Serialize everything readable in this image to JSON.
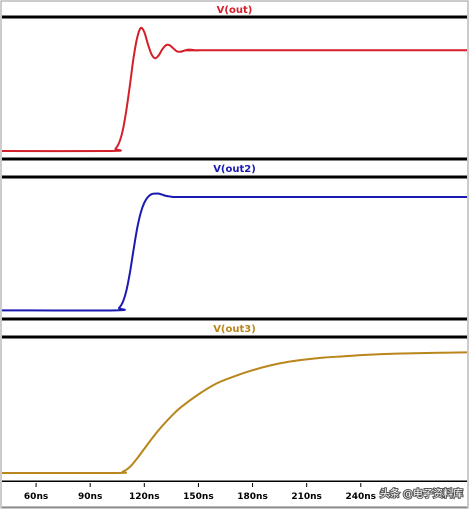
{
  "chart_data": [
    {
      "type": "line",
      "title": "V(out)",
      "color": "#d31f2a",
      "xlim": [
        40,
        300
      ],
      "ylim": [
        -0.05,
        1.3
      ],
      "grid": false,
      "x": [
        40,
        102,
        104,
        106,
        108,
        110,
        112,
        114,
        116,
        118,
        120,
        122,
        124,
        126,
        128,
        130,
        132,
        134,
        136,
        138,
        140,
        142,
        144,
        146,
        148,
        150,
        155,
        300
      ],
      "values": [
        0,
        0,
        0.02,
        0.08,
        0.2,
        0.4,
        0.65,
        0.92,
        1.12,
        1.22,
        1.18,
        1.06,
        0.96,
        0.92,
        0.95,
        1.01,
        1.05,
        1.05,
        1.02,
        0.99,
        0.985,
        0.995,
        1.005,
        1.005,
        1.0,
        0.998,
        1.0,
        1.0
      ]
    },
    {
      "type": "line",
      "title": "V(out2)",
      "color": "#1a1ab0",
      "xlim": [
        40,
        300
      ],
      "ylim": [
        -0.05,
        1.15
      ],
      "grid": false,
      "x": [
        40,
        104,
        106,
        108,
        110,
        112,
        114,
        116,
        118,
        120,
        122,
        124,
        126,
        128,
        130,
        132,
        134,
        136,
        138,
        140,
        145,
        150,
        300
      ],
      "values": [
        0,
        0,
        0.02,
        0.07,
        0.17,
        0.33,
        0.53,
        0.72,
        0.86,
        0.95,
        1.0,
        1.025,
        1.03,
        1.03,
        1.02,
        1.01,
        1.005,
        1.0,
        1.0,
        1.0,
        1.0,
        1.0,
        1.0
      ]
    },
    {
      "type": "line",
      "title": "V(out3)",
      "color": "#b8861c",
      "xlim": [
        40,
        300
      ],
      "ylim": [
        -0.05,
        1.1
      ],
      "grid": false,
      "x": [
        40,
        104,
        108,
        112,
        116,
        120,
        125,
        130,
        135,
        140,
        150,
        160,
        170,
        180,
        190,
        200,
        210,
        220,
        230,
        240,
        250,
        260,
        270,
        280,
        290,
        300
      ],
      "values": [
        0,
        0,
        0.01,
        0.05,
        0.12,
        0.2,
        0.3,
        0.39,
        0.47,
        0.54,
        0.65,
        0.74,
        0.8,
        0.85,
        0.89,
        0.92,
        0.94,
        0.955,
        0.965,
        0.975,
        0.982,
        0.987,
        0.99,
        0.993,
        0.996,
        0.998
      ]
    }
  ],
  "x_axis": {
    "ticks": [
      {
        "value": 60,
        "label": "60ns"
      },
      {
        "value": 90,
        "label": "90ns"
      },
      {
        "value": 120,
        "label": "120ns"
      },
      {
        "value": 150,
        "label": "150ns"
      },
      {
        "value": 180,
        "label": "180ns"
      },
      {
        "value": 210,
        "label": "210ns"
      },
      {
        "value": 240,
        "label": "240ns"
      }
    ]
  },
  "watermark": "头条 @电子资料库"
}
